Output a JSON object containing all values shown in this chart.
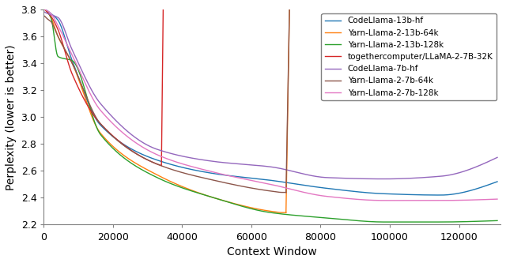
{
  "title": "",
  "xlabel": "Context Window",
  "ylabel": "Perplexity (lower is better)",
  "xlim": [
    0,
    132000
  ],
  "ylim": [
    2.2,
    3.8
  ],
  "yticks": [
    2.2,
    2.4,
    2.6,
    2.8,
    3.0,
    3.2,
    3.4,
    3.6,
    3.8
  ],
  "xticks": [
    0,
    20000,
    40000,
    60000,
    80000,
    100000,
    120000
  ],
  "xticklabels": [
    "0",
    "20000",
    "40000",
    "60000",
    "80000",
    "100000",
    "120000"
  ],
  "series": [
    {
      "label": "CodeLlama-13b-hf",
      "color": "#1f77b4",
      "segments": [
        {
          "x": [
            256,
            1024,
            2048,
            4096,
            8192,
            16384,
            32768,
            49152,
            65536,
            81920,
            98304,
            114688,
            131072
          ],
          "y": [
            3.8,
            3.79,
            3.77,
            3.72,
            3.42,
            2.94,
            2.68,
            2.58,
            2.53,
            2.47,
            2.43,
            2.42,
            2.52
          ]
        }
      ]
    },
    {
      "label": "Yarn-Llama-2-13b-64k",
      "color": "#ff7f0e",
      "segments": [
        {
          "x": [
            256,
            1024,
            2048,
            4096,
            8192,
            16384,
            32768,
            49152,
            65536,
            69000,
            70000,
            71000
          ],
          "y": [
            3.8,
            3.78,
            3.74,
            3.6,
            3.4,
            2.88,
            2.57,
            2.4,
            2.3,
            2.29,
            2.29,
            3.8
          ]
        }
      ]
    },
    {
      "label": "Yarn-Llama-2-13b-128k",
      "color": "#2ca02c",
      "segments": [
        {
          "x": [
            256,
            1024,
            2048,
            4096,
            8192,
            16384,
            32768,
            49152,
            65536,
            81920,
            98304,
            114688,
            131072
          ],
          "y": [
            3.8,
            3.78,
            3.74,
            3.45,
            3.42,
            2.87,
            2.55,
            2.4,
            2.29,
            2.25,
            2.22,
            2.22,
            2.23
          ]
        }
      ]
    },
    {
      "label": "togethercomputer/LLaMA-2-7B-32K",
      "color": "#d62728",
      "segments": [
        {
          "x": [
            256,
            1024,
            2048,
            4096,
            8192,
            16384,
            32768,
            34000,
            34500
          ],
          "y": [
            3.8,
            3.78,
            3.75,
            3.65,
            3.32,
            2.95,
            2.65,
            2.64,
            3.8
          ]
        }
      ]
    },
    {
      "label": "CodeLlama-7b-hf",
      "color": "#9467bd",
      "segments": [
        {
          "x": [
            256,
            1024,
            2048,
            4096,
            8192,
            16384,
            32768,
            49152,
            65536,
            81920,
            98304,
            114688,
            131072
          ],
          "y": [
            3.78,
            3.77,
            3.76,
            3.74,
            3.5,
            3.1,
            2.76,
            2.67,
            2.63,
            2.55,
            2.54,
            2.56,
            2.7
          ]
        }
      ]
    },
    {
      "label": "Yarn-Llama-2-7b-64k",
      "color": "#8c564b",
      "segments": [
        {
          "x": [
            256,
            1024,
            2048,
            4096,
            8192,
            16384,
            32768,
            49152,
            65536,
            69000,
            70000,
            71000
          ],
          "y": [
            3.75,
            3.73,
            3.71,
            3.6,
            3.4,
            2.95,
            2.65,
            2.53,
            2.45,
            2.44,
            2.44,
            3.8
          ]
        }
      ]
    },
    {
      "label": "Yarn-Llama-2-7b-128k",
      "color": "#e377c2",
      "segments": [
        {
          "x": [
            256,
            1024,
            2048,
            4096,
            8192,
            16384,
            32768,
            49152,
            65536,
            81920,
            98304,
            114688,
            131072
          ],
          "y": [
            3.8,
            3.79,
            3.77,
            3.68,
            3.46,
            3.05,
            2.72,
            2.59,
            2.5,
            2.41,
            2.38,
            2.38,
            2.39
          ]
        }
      ]
    }
  ],
  "legend_loc": "upper right",
  "figsize": [
    6.4,
    3.33
  ],
  "dpi": 100
}
